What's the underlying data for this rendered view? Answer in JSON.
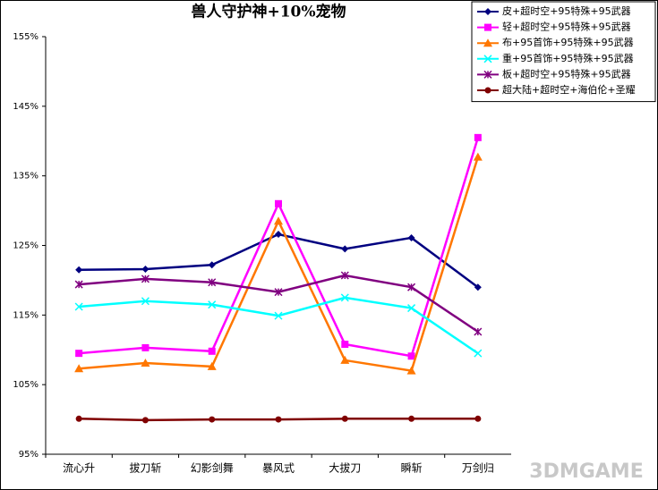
{
  "chart_data": {
    "type": "line",
    "title": "兽人守护神+10%宠物",
    "categories": [
      "流心升",
      "拔刀斩",
      "幻影剑舞",
      "暴风式",
      "大拔刀",
      "瞬斩",
      "万剑归"
    ],
    "series": [
      {
        "name": "皮+超时空+95特殊+95武器",
        "color": "#000080",
        "marker": "diamond",
        "values": [
          121.5,
          121.6,
          122.2,
          126.6,
          124.5,
          126.1,
          119.0
        ]
      },
      {
        "name": "轻+超时空+95特殊+95武器",
        "color": "#ff00ff",
        "marker": "square",
        "values": [
          109.5,
          110.3,
          109.8,
          131.0,
          110.8,
          109.1,
          140.5
        ]
      },
      {
        "name": "布+95首饰+95特殊+95武器",
        "color": "#ff7700",
        "marker": "triangle",
        "values": [
          107.3,
          108.1,
          107.6,
          128.5,
          108.5,
          107.0,
          137.7
        ]
      },
      {
        "name": "重+95首饰+95特殊+95武器",
        "color": "#00ffff",
        "marker": "x",
        "values": [
          116.2,
          117.0,
          116.5,
          114.9,
          117.5,
          116.0,
          109.5
        ]
      },
      {
        "name": "板+超时空+95特殊+95武器",
        "color": "#800080",
        "marker": "asterisk",
        "values": [
          119.4,
          120.2,
          119.7,
          118.3,
          120.7,
          119.0,
          112.6
        ]
      },
      {
        "name": "超大陆+超时空+海伯伦+圣耀",
        "color": "#800000",
        "marker": "circle",
        "values": [
          100.1,
          99.9,
          100.0,
          100.0,
          100.1,
          100.1,
          100.1
        ]
      }
    ],
    "ylim": [
      95,
      155
    ],
    "yticks": [
      {
        "value": 95,
        "label": "95%"
      },
      {
        "value": 105,
        "label": "105%"
      },
      {
        "value": 115,
        "label": "115%"
      },
      {
        "value": 125,
        "label": "125%"
      },
      {
        "value": 135,
        "label": "135%"
      },
      {
        "value": 145,
        "label": "145%"
      },
      {
        "value": 155,
        "label": "155%"
      }
    ],
    "grid": false,
    "legend": "top-right",
    "watermark": "3DMGAME"
  }
}
